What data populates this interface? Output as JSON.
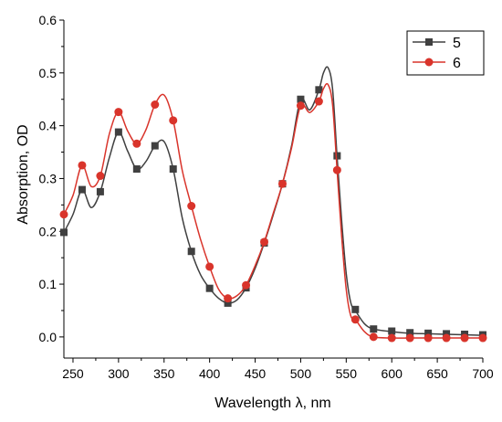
{
  "chart_data": {
    "type": "line",
    "xlabel": "Wavelength λ, nm",
    "ylabel": "Absorption, OD",
    "xlim": [
      240,
      700
    ],
    "ylim": [
      -0.04,
      0.6
    ],
    "x_ticks": [
      250,
      300,
      350,
      400,
      450,
      500,
      550,
      600,
      650,
      700
    ],
    "y_ticks": [
      0.0,
      0.1,
      0.2,
      0.3,
      0.4,
      0.5,
      0.6
    ],
    "grid": false,
    "legend_position": "top-right",
    "series": [
      {
        "name": "5",
        "color": "#404040",
        "marker": "square",
        "curve": [
          [
            240,
            0.198
          ],
          [
            250,
            0.232
          ],
          [
            260,
            0.279
          ],
          [
            270,
            0.245
          ],
          [
            280,
            0.275
          ],
          [
            290,
            0.34
          ],
          [
            300,
            0.388
          ],
          [
            310,
            0.352
          ],
          [
            320,
            0.318
          ],
          [
            330,
            0.332
          ],
          [
            340,
            0.362
          ],
          [
            350,
            0.37
          ],
          [
            360,
            0.318
          ],
          [
            370,
            0.225
          ],
          [
            380,
            0.162
          ],
          [
            390,
            0.118
          ],
          [
            400,
            0.092
          ],
          [
            410,
            0.073
          ],
          [
            420,
            0.064
          ],
          [
            430,
            0.07
          ],
          [
            440,
            0.093
          ],
          [
            450,
            0.13
          ],
          [
            460,
            0.178
          ],
          [
            470,
            0.232
          ],
          [
            480,
            0.29
          ],
          [
            490,
            0.362
          ],
          [
            500,
            0.45
          ],
          [
            510,
            0.43
          ],
          [
            520,
            0.468
          ],
          [
            525,
            0.5
          ],
          [
            530,
            0.51
          ],
          [
            535,
            0.47
          ],
          [
            540,
            0.34
          ],
          [
            545,
            0.22
          ],
          [
            550,
            0.12
          ],
          [
            555,
            0.065
          ],
          [
            560,
            0.05
          ],
          [
            570,
            0.025
          ],
          [
            580,
            0.015
          ],
          [
            600,
            0.01
          ],
          [
            620,
            0.007
          ],
          [
            640,
            0.006
          ],
          [
            660,
            0.005
          ],
          [
            680,
            0.004
          ],
          [
            700,
            0.003
          ]
        ],
        "markers": [
          [
            240,
            0.198
          ],
          [
            260,
            0.279
          ],
          [
            280,
            0.275
          ],
          [
            300,
            0.388
          ],
          [
            320,
            0.318
          ],
          [
            340,
            0.362
          ],
          [
            360,
            0.318
          ],
          [
            380,
            0.162
          ],
          [
            400,
            0.092
          ],
          [
            420,
            0.064
          ],
          [
            440,
            0.093
          ],
          [
            460,
            0.178
          ],
          [
            480,
            0.29
          ],
          [
            500,
            0.45
          ],
          [
            520,
            0.468
          ],
          [
            540,
            0.343
          ],
          [
            560,
            0.052
          ],
          [
            580,
            0.015
          ],
          [
            600,
            0.011
          ],
          [
            620,
            0.008
          ],
          [
            640,
            0.007
          ],
          [
            660,
            0.006
          ],
          [
            680,
            0.005
          ],
          [
            700,
            0.004
          ]
        ]
      },
      {
        "name": "6",
        "color": "#d9342b",
        "marker": "circle",
        "curve": [
          [
            240,
            0.232
          ],
          [
            250,
            0.268
          ],
          [
            260,
            0.325
          ],
          [
            270,
            0.285
          ],
          [
            280,
            0.305
          ],
          [
            290,
            0.385
          ],
          [
            300,
            0.426
          ],
          [
            310,
            0.39
          ],
          [
            320,
            0.366
          ],
          [
            330,
            0.392
          ],
          [
            340,
            0.44
          ],
          [
            350,
            0.458
          ],
          [
            360,
            0.41
          ],
          [
            370,
            0.315
          ],
          [
            380,
            0.248
          ],
          [
            390,
            0.185
          ],
          [
            400,
            0.133
          ],
          [
            410,
            0.09
          ],
          [
            420,
            0.073
          ],
          [
            430,
            0.078
          ],
          [
            440,
            0.098
          ],
          [
            450,
            0.135
          ],
          [
            460,
            0.18
          ],
          [
            470,
            0.235
          ],
          [
            480,
            0.29
          ],
          [
            490,
            0.358
          ],
          [
            500,
            0.438
          ],
          [
            510,
            0.425
          ],
          [
            520,
            0.446
          ],
          [
            525,
            0.47
          ],
          [
            530,
            0.478
          ],
          [
            535,
            0.44
          ],
          [
            540,
            0.315
          ],
          [
            545,
            0.19
          ],
          [
            550,
            0.09
          ],
          [
            555,
            0.04
          ],
          [
            560,
            0.033
          ],
          [
            570,
            0.01
          ],
          [
            580,
            0.0
          ],
          [
            600,
            -0.002
          ],
          [
            620,
            -0.002
          ],
          [
            640,
            -0.002
          ],
          [
            660,
            -0.002
          ],
          [
            680,
            -0.002
          ],
          [
            700,
            -0.002
          ]
        ],
        "markers": [
          [
            240,
            0.232
          ],
          [
            260,
            0.325
          ],
          [
            280,
            0.305
          ],
          [
            300,
            0.426
          ],
          [
            320,
            0.366
          ],
          [
            340,
            0.44
          ],
          [
            360,
            0.41
          ],
          [
            380,
            0.248
          ],
          [
            400,
            0.133
          ],
          [
            420,
            0.073
          ],
          [
            440,
            0.098
          ],
          [
            460,
            0.18
          ],
          [
            480,
            0.29
          ],
          [
            500,
            0.438
          ],
          [
            520,
            0.446
          ],
          [
            540,
            0.316
          ],
          [
            560,
            0.033
          ],
          [
            580,
            0.0
          ],
          [
            600,
            -0.002
          ],
          [
            620,
            -0.002
          ],
          [
            640,
            -0.002
          ],
          [
            660,
            -0.002
          ],
          [
            680,
            -0.002
          ],
          [
            700,
            -0.002
          ]
        ]
      }
    ]
  }
}
